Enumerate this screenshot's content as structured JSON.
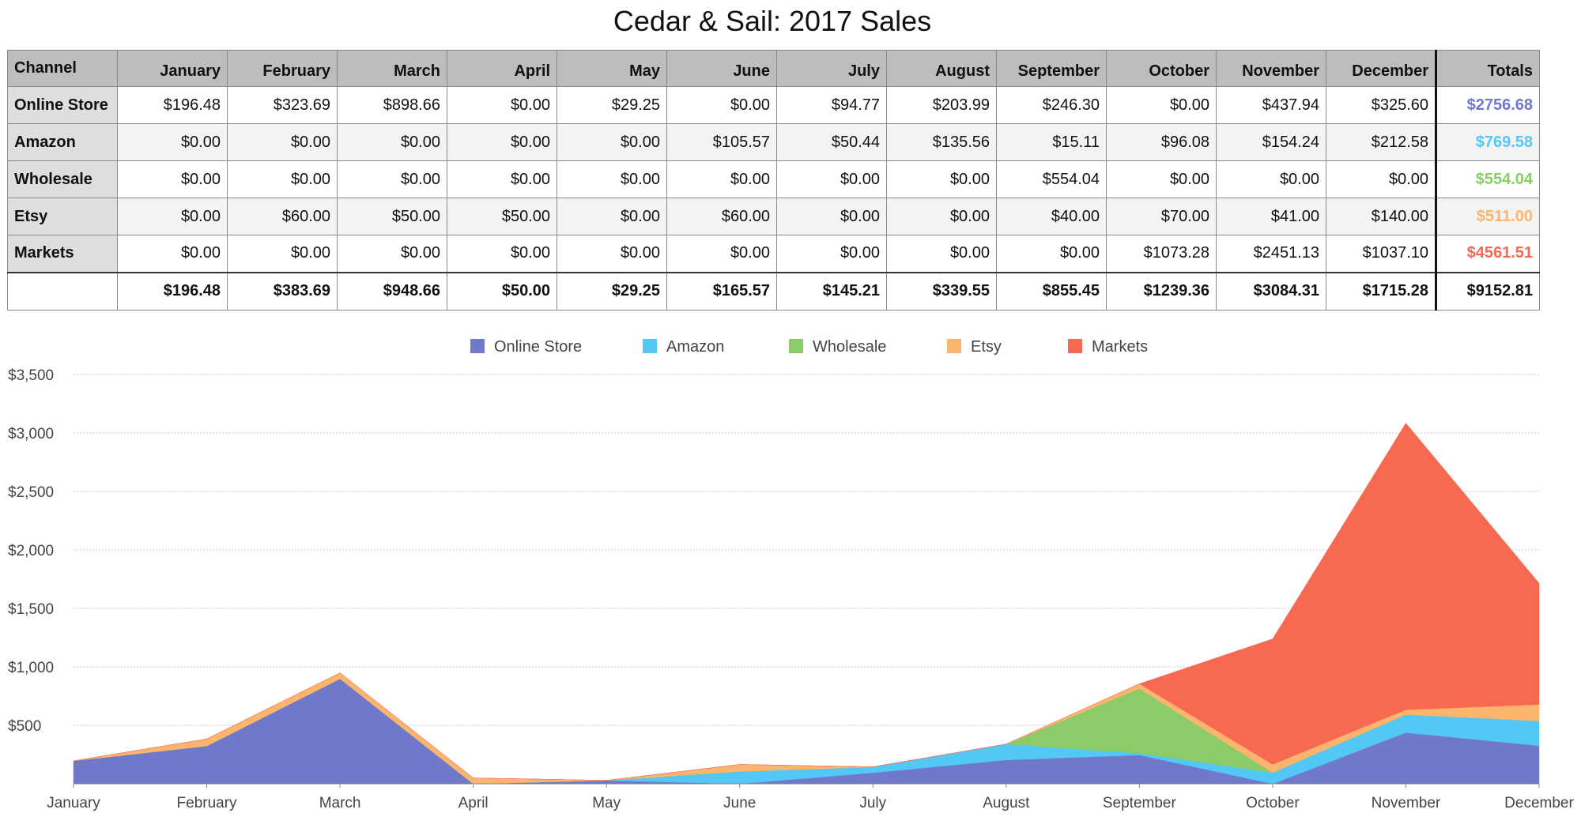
{
  "title": "Cedar & Sail: 2017 Sales",
  "table": {
    "channel_header": "Channel",
    "totals_header": "Totals",
    "months": [
      "January",
      "February",
      "March",
      "April",
      "May",
      "June",
      "July",
      "August",
      "September",
      "October",
      "November",
      "December"
    ],
    "rows": [
      {
        "channel": "Online Store",
        "values": [
          "$196.48",
          "$323.69",
          "$898.66",
          "$0.00",
          "$29.25",
          "$0.00",
          "$94.77",
          "$203.99",
          "$246.30",
          "$0.00",
          "$437.94",
          "$325.60"
        ],
        "total": "$2756.68"
      },
      {
        "channel": "Amazon",
        "values": [
          "$0.00",
          "$0.00",
          "$0.00",
          "$0.00",
          "$0.00",
          "$105.57",
          "$50.44",
          "$135.56",
          "$15.11",
          "$96.08",
          "$154.24",
          "$212.58"
        ],
        "total": "$769.58"
      },
      {
        "channel": "Wholesale",
        "values": [
          "$0.00",
          "$0.00",
          "$0.00",
          "$0.00",
          "$0.00",
          "$0.00",
          "$0.00",
          "$0.00",
          "$554.04",
          "$0.00",
          "$0.00",
          "$0.00"
        ],
        "total": "$554.04"
      },
      {
        "channel": "Etsy",
        "values": [
          "$0.00",
          "$60.00",
          "$50.00",
          "$50.00",
          "$0.00",
          "$60.00",
          "$0.00",
          "$0.00",
          "$40.00",
          "$70.00",
          "$41.00",
          "$140.00"
        ],
        "total": "$511.00"
      },
      {
        "channel": "Markets",
        "values": [
          "$0.00",
          "$0.00",
          "$0.00",
          "$0.00",
          "$0.00",
          "$0.00",
          "$0.00",
          "$0.00",
          "$0.00",
          "$1073.28",
          "$2451.13",
          "$1037.10"
        ],
        "total": "$4561.51"
      }
    ],
    "footer_label": "",
    "column_totals": [
      "$196.48",
      "$383.69",
      "$948.66",
      "$50.00",
      "$29.25",
      "$165.57",
      "$145.21",
      "$339.55",
      "$855.45",
      "$1239.36",
      "$3084.31",
      "$1715.28"
    ],
    "grand_total": "$9152.81"
  },
  "colors": {
    "Online Store": "#7079c9",
    "Amazon": "#54c8f5",
    "Wholesale": "#8bcb68",
    "Etsy": "#fbb56e",
    "Markets": "#f76a51",
    "gridline": "#c9c9c9",
    "header_bg": "#bdbdbd"
  },
  "chart_data": {
    "type": "area",
    "stacked": true,
    "categories": [
      "January",
      "February",
      "March",
      "April",
      "May",
      "June",
      "July",
      "August",
      "September",
      "October",
      "November",
      "December"
    ],
    "series": [
      {
        "name": "Online Store",
        "values": [
          196.48,
          323.69,
          898.66,
          0,
          29.25,
          0,
          94.77,
          203.99,
          246.3,
          0,
          437.94,
          325.6
        ]
      },
      {
        "name": "Amazon",
        "values": [
          0,
          0,
          0,
          0,
          0,
          105.57,
          50.44,
          135.56,
          15.11,
          96.08,
          154.24,
          212.58
        ]
      },
      {
        "name": "Wholesale",
        "values": [
          0,
          0,
          0,
          0,
          0,
          0,
          0,
          0,
          554.04,
          0,
          0,
          0
        ]
      },
      {
        "name": "Etsy",
        "values": [
          0,
          60,
          50,
          50,
          0,
          60,
          0,
          0,
          40,
          70,
          41,
          140
        ]
      },
      {
        "name": "Markets",
        "values": [
          0,
          0,
          0,
          0,
          0,
          0,
          0,
          0,
          0,
          1073.28,
          2451.13,
          1037.1
        ]
      }
    ],
    "ylim": [
      0,
      3500
    ],
    "yticks": [
      500,
      1000,
      1500,
      2000,
      2500,
      3000,
      3500
    ],
    "ytick_labels": [
      "$500",
      "$1,000",
      "$1,500",
      "$2,000",
      "$2,500",
      "$3,000",
      "$3,500"
    ],
    "grid": true,
    "legend_position": "top-center",
    "xlabel": "",
    "ylabel": ""
  }
}
